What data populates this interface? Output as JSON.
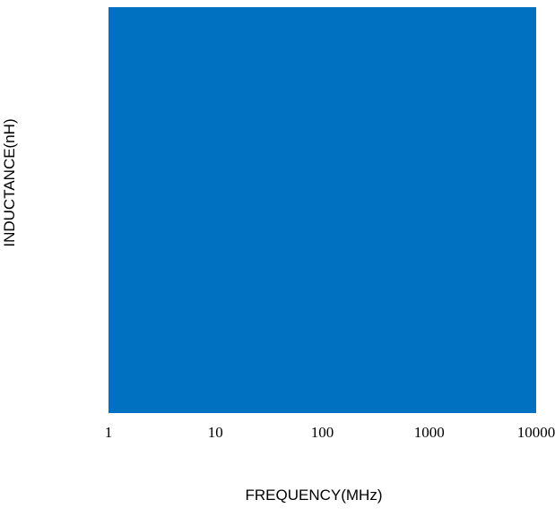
{
  "chart_data": {
    "type": "area",
    "title": "",
    "xlabel": "FREQUENCY(MHz)",
    "ylabel": "INDUCTANCE(nH)",
    "x_scale": "log",
    "xlim": [
      1,
      10000
    ],
    "x_ticks": [
      1,
      10,
      100,
      1000,
      10000
    ],
    "x_tick_labels": [
      "1",
      "10",
      "100",
      "1000",
      "10000"
    ],
    "y_ticks": [],
    "grid": false,
    "legend": "none",
    "fill_color": "#0070C0",
    "series": []
  }
}
